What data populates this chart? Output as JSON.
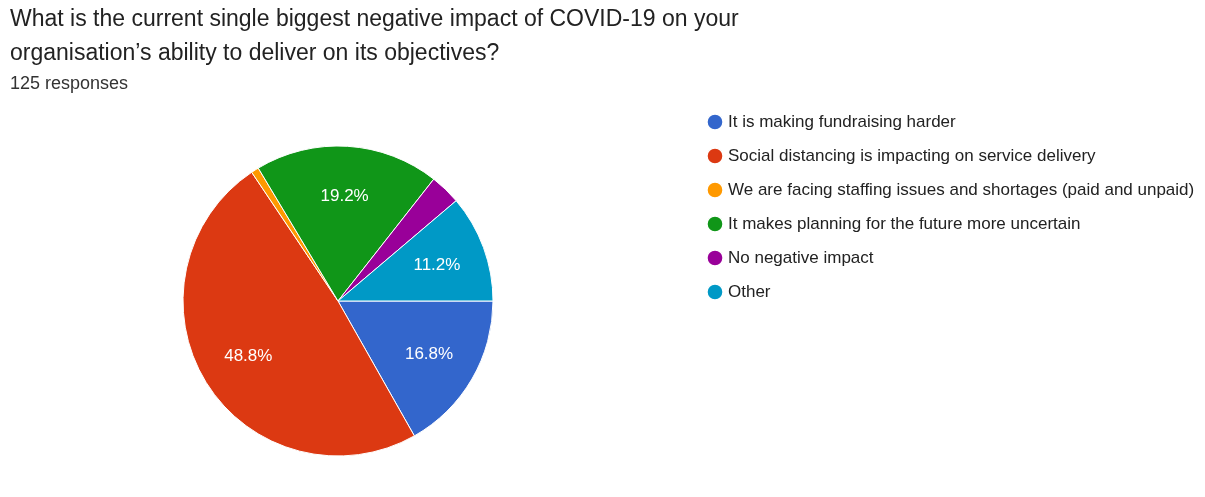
{
  "chart_data": {
    "type": "pie",
    "title": "What is the current single biggest negative impact of COVID-19 on your organisation’s ability to deliver on its objectives?",
    "subtitle": "125 responses",
    "categories": [
      "It is making fundraising harder",
      "Social distancing is impacting on service delivery",
      "We are facing staffing issues and shortages (paid and unpaid)",
      "It makes planning for the future more uncertain",
      "No negative impact",
      "Other"
    ],
    "values": [
      16.8,
      48.8,
      0.8,
      19.2,
      3.2,
      11.2
    ],
    "colors": [
      "#3366cc",
      "#dc3912",
      "#ff9900",
      "#109618",
      "#990099",
      "#0099c6"
    ],
    "value_labels": [
      "16.8%",
      "48.8%",
      null,
      "19.2%",
      null,
      "11.2%"
    ],
    "legend": "right"
  }
}
